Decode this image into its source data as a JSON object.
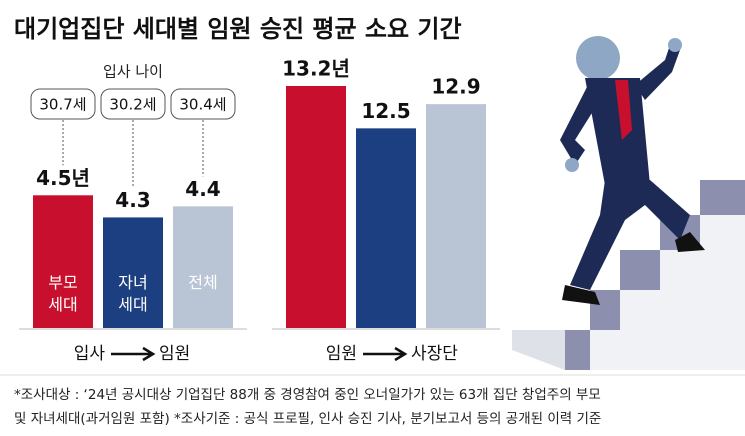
{
  "title": "대기업집단 세대별 임원 승진 평균 소요 기간",
  "chart_data": [
    {
      "type": "bar",
      "subtitle": "입사 나이",
      "categories": [
        "부모 세대",
        "자녀 세대",
        "전체"
      ],
      "values": [
        4.5,
        4.3,
        4.4
      ],
      "value_labels": [
        "4.5년",
        "4.3",
        "4.4"
      ],
      "entry_age": {
        "values": [
          30.7,
          30.2,
          30.4
        ],
        "value_labels": [
          "30.7세",
          "30.2세",
          "30.4세"
        ]
      },
      "colors": [
        "#c8102e",
        "#1b3f80",
        "#b9c4d4"
      ],
      "ylim": [
        3.3,
        5.0
      ],
      "x_label_from": "입사",
      "x_label_to": "임원"
    },
    {
      "type": "bar",
      "categories": [
        null,
        null,
        null
      ],
      "values": [
        13.2,
        12.5,
        12.9
      ],
      "value_labels": [
        "13.2년",
        "12.5",
        "12.9"
      ],
      "colors": [
        "#c8102e",
        "#1b3f80",
        "#b9c4d4"
      ],
      "ylim": [
        9.2,
        13.2
      ],
      "x_label_from": "임원",
      "x_label_to": "사장단"
    }
  ],
  "footnote": [
    "*조사대상 : ‘24년 공시대상 기업집단 88개 중 경영참여 중인 오너일가가 있는 63개 집단 창업주의 부모",
    "및 자녀세대(과거임원 포함) *조사기준 : 공식 프로필, 인사 승진 기사, 분기보고서 등의 공개된 이력 기준"
  ]
}
